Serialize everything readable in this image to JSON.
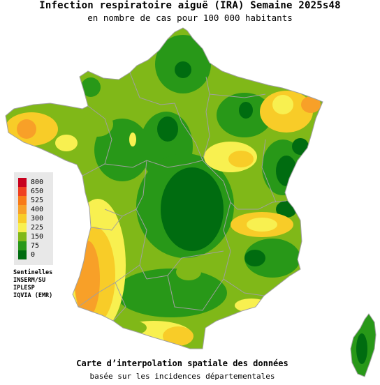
{
  "header": {
    "title": "Infection respiratoire aiguë (IRA) Semaine 2025s48",
    "subtitle": "en nombre de cas pour 100 000 habitants"
  },
  "legend": {
    "items": [
      {
        "label": "800",
        "color": "#c8001e"
      },
      {
        "label": "650",
        "color": "#f04020"
      },
      {
        "label": "525",
        "color": "#f87a18"
      },
      {
        "label": "400",
        "color": "#f8a028"
      },
      {
        "label": "300",
        "color": "#f8cc28"
      },
      {
        "label": "225",
        "color": "#f8f050"
      },
      {
        "label": "150",
        "color": "#80b818"
      },
      {
        "label": "75",
        "color": "#289818"
      },
      {
        "label": "0",
        "color": "#006c10"
      }
    ]
  },
  "sources": {
    "lines": [
      "Sentinelles",
      "INSERM/SU",
      "IPLESP",
      "IQVIA (EMR)"
    ]
  },
  "footer": {
    "line1": "Carte d’interpolation spatiale des données",
    "line2": "basée sur les incidences départementales"
  },
  "colors": {
    "dark_green": "#006c10",
    "green": "#289818",
    "light_green": "#80b818",
    "yellow": "#f8f050",
    "gold": "#f8cc28",
    "orange": "#f8a028",
    "region_border": "#a0a0a0"
  }
}
